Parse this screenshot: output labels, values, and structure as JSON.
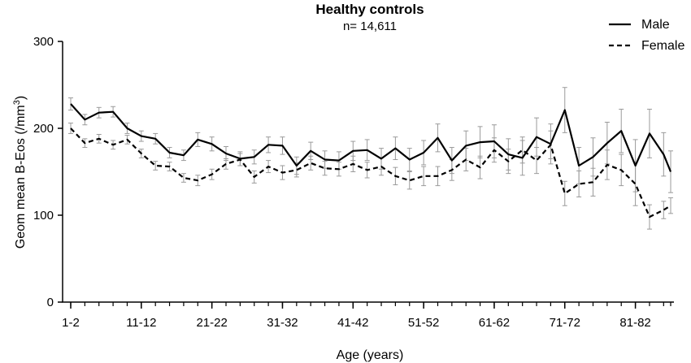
{
  "chart_data": {
    "type": "line",
    "title": "Healthy controls",
    "subtitle": "n= 14,611",
    "xlabel": "Age (years)",
    "ylabel": "Geom mean B-Eos (/mm³)",
    "ylabel_main": "Geom mean B-Eos (/mm",
    "ylabel_sup": "3",
    "ylabel_close": ")",
    "ylim": [
      0,
      300
    ],
    "yticks": [
      0,
      100,
      200,
      300
    ],
    "xlim": [
      1,
      86
    ],
    "xticks": [
      {
        "label": "1-2",
        "x": 1
      },
      {
        "label": "11-12",
        "x": 11
      },
      {
        "label": "21-22",
        "x": 21
      },
      {
        "label": "31-32",
        "x": 31
      },
      {
        "label": "41-42",
        "x": 41
      },
      {
        "label": "51-52",
        "x": 51
      },
      {
        "label": "61-62",
        "x": 61
      },
      {
        "label": "71-72",
        "x": 71
      },
      {
        "label": "81-82",
        "x": 81
      }
    ],
    "x": [
      1,
      3,
      5,
      7,
      9,
      11,
      13,
      15,
      17,
      19,
      21,
      23,
      25,
      27,
      29,
      31,
      33,
      35,
      37,
      39,
      41,
      43,
      45,
      47,
      49,
      51,
      53,
      55,
      57,
      59,
      61,
      63,
      65,
      67,
      69,
      71,
      73,
      75,
      77,
      79,
      81,
      83,
      85,
      86
    ],
    "series": [
      {
        "name": "Male",
        "style": "solid",
        "values": [
          228,
          210,
          218,
          219,
          200,
          191,
          188,
          172,
          169,
          187,
          182,
          171,
          165,
          167,
          181,
          180,
          157,
          174,
          164,
          163,
          174,
          175,
          165,
          177,
          164,
          172,
          189,
          163,
          180,
          184,
          185,
          170,
          166,
          190,
          182,
          221,
          157,
          167,
          183,
          197,
          157,
          194,
          170,
          150
        ],
        "errors": [
          7,
          6,
          6,
          6,
          6,
          6,
          6,
          6,
          6,
          8,
          8,
          8,
          8,
          8,
          9,
          10,
          10,
          10,
          10,
          10,
          11,
          12,
          12,
          13,
          13,
          14,
          16,
          15,
          17,
          18,
          19,
          18,
          20,
          22,
          23,
          26,
          21,
          22,
          24,
          25,
          30,
          28,
          25,
          24
        ]
      },
      {
        "name": "Female",
        "style": "dashed",
        "values": [
          200,
          183,
          188,
          181,
          187,
          171,
          157,
          156,
          143,
          140,
          147,
          159,
          164,
          144,
          156,
          149,
          152,
          160,
          154,
          153,
          159,
          152,
          156,
          145,
          140,
          145,
          145,
          152,
          164,
          155,
          175,
          162,
          175,
          163,
          181,
          125,
          136,
          138,
          158,
          152,
          136,
          98,
          106,
          111
        ],
        "errors": [
          6,
          5,
          5,
          5,
          5,
          5,
          5,
          5,
          5,
          6,
          6,
          6,
          7,
          7,
          7,
          8,
          8,
          8,
          8,
          8,
          9,
          9,
          10,
          10,
          10,
          11,
          11,
          12,
          13,
          13,
          14,
          14,
          15,
          15,
          16,
          14,
          15,
          16,
          17,
          18,
          25,
          14,
          10,
          9
        ]
      }
    ],
    "legend": {
      "position": "top-right"
    }
  }
}
